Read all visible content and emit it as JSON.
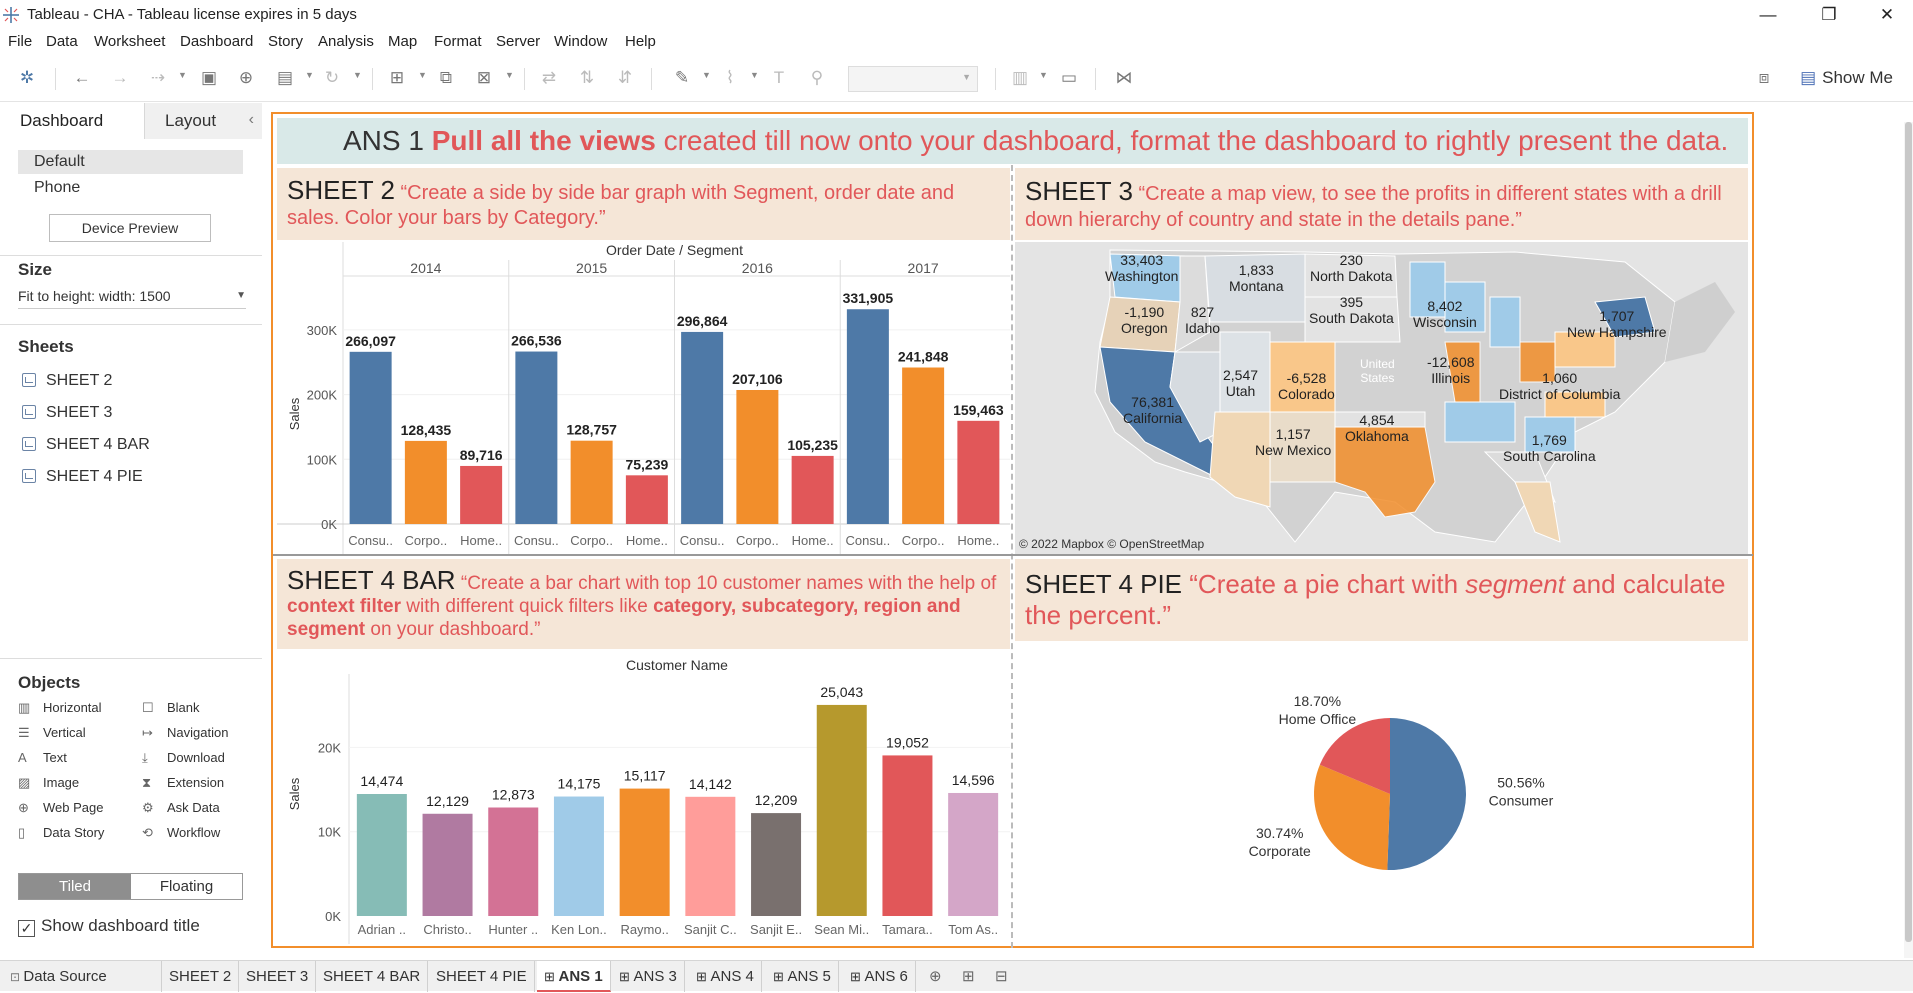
{
  "window": {
    "title": "Tableau - CHA - Tableau license expires in 5 days",
    "minimize": "—",
    "maximize": "❐",
    "close": "✕"
  },
  "menu": [
    "File",
    "Data",
    "Worksheet",
    "Dashboard",
    "Story",
    "Analysis",
    "Map",
    "Format",
    "Server",
    "Window",
    "Help"
  ],
  "toolbar": {
    "show_me": "Show Me"
  },
  "left_pane": {
    "tab_dashboard": "Dashboard",
    "tab_layout": "Layout",
    "devices": [
      "Default",
      "Phone"
    ],
    "device_preview": "Device Preview",
    "size_header": "Size",
    "size_value": "Fit to height: width: 1500",
    "sheets_header": "Sheets",
    "sheets": [
      "SHEET 2",
      "SHEET 3",
      "SHEET 4 BAR",
      "SHEET 4 PIE"
    ],
    "objects_header": "Objects",
    "objects": [
      {
        "label": "Horizontal",
        "icon": "horizontal-icon"
      },
      {
        "label": "Blank",
        "icon": "blank-icon"
      },
      {
        "label": "Vertical",
        "icon": "vertical-icon"
      },
      {
        "label": "Navigation",
        "icon": "navigation-icon"
      },
      {
        "label": "Text",
        "icon": "text-icon"
      },
      {
        "label": "Download",
        "icon": "download-icon"
      },
      {
        "label": "Image",
        "icon": "image-icon"
      },
      {
        "label": "Extension",
        "icon": "extension-icon"
      },
      {
        "label": "Web Page",
        "icon": "web-page-icon"
      },
      {
        "label": "Ask Data",
        "icon": "ask-data-icon"
      },
      {
        "label": "Data Story",
        "icon": "data-story-icon"
      },
      {
        "label": "Workflow",
        "icon": "workflow-icon"
      }
    ],
    "tiled": "Tiled",
    "floating": "Floating",
    "show_title": "Show dashboard title"
  },
  "dashboard": {
    "title_prefix": "ANS 1 ",
    "title_bold": "Pull all the views",
    "title_rest": " created till now onto your dashboard, format the dashboard to rightly present the data.",
    "sheet2": {
      "name": "SHEET 2",
      "question": "  “Create a side by side bar graph with Segment, order date and sales. Color your bars by Category.”"
    },
    "sheet3": {
      "name": "SHEET 3",
      "question": " “Create a map view, to see the profits in different states with a drill down hierarchy of country and state in the details pane.”"
    },
    "sheet4bar": {
      "name": "SHEET 4 BAR",
      "q1": "  “Create a bar chart with top 10 customer names with the help of ",
      "q2": "context filter",
      "q3": " with different quick filters like ",
      "q4": "category, subcategory, region and segment",
      "q5": "  on your dashboard.”"
    },
    "sheet4pie": {
      "name": "SHEET 4 PIE",
      "q1": "  “Create a pie chart with ",
      "q2": "segment",
      "q3": " and calculate the percent.”"
    },
    "map_attribution": "© 2022 Mapbox © OpenStreetMap",
    "map_labels": [
      {
        "value": "33,403",
        "state": "Washington"
      },
      {
        "value": "1,833",
        "state": "Montana"
      },
      {
        "value": "230",
        "state": "North Dakota"
      },
      {
        "value": "-1,190",
        "state": "Oregon"
      },
      {
        "value": "827",
        "state": "Idaho"
      },
      {
        "value": "395",
        "state": "South Dakota"
      },
      {
        "value": "8,402",
        "state": "Wisconsin"
      },
      {
        "value": "1,707",
        "state": "New Hampshire"
      },
      {
        "value": "2,547",
        "state": "Utah"
      },
      {
        "value": "-6,528",
        "state": "Colorado"
      },
      {
        "value": "-12,608",
        "state": "Illinois"
      },
      {
        "value": "1,060",
        "state": "District of Columbia"
      },
      {
        "value": "76,381",
        "state": "California"
      },
      {
        "value": "4,854",
        "state": "Oklahoma"
      },
      {
        "value": "1,157",
        "state": "New Mexico"
      },
      {
        "value": "1,769",
        "state": "South Carolina"
      }
    ],
    "map_faint": [
      "United",
      "States"
    ]
  },
  "chart_data": [
    {
      "type": "bar",
      "title": "Order Date / Segment",
      "ylabel": "Sales",
      "ylim": [
        0,
        340000
      ],
      "yticks": [
        "0K",
        "100K",
        "200K",
        "300K"
      ],
      "ytick_values": [
        0,
        100000,
        200000,
        300000
      ],
      "groups": [
        "2014",
        "2015",
        "2016",
        "2017"
      ],
      "categories": [
        "Consu..",
        "Corpo..",
        "Home.."
      ],
      "series": [
        {
          "name": "Consumer",
          "color": "#4e79a7",
          "values": [
            266097,
            266536,
            296864,
            331905
          ]
        },
        {
          "name": "Corporate",
          "color": "#f28e2b",
          "values": [
            128435,
            128757,
            207106,
            241848
          ]
        },
        {
          "name": "Home Office",
          "color": "#e15759",
          "values": [
            89716,
            75239,
            105235,
            159463
          ]
        }
      ],
      "labels": [
        [
          "266,097",
          "128,435",
          "89,716"
        ],
        [
          "266,536",
          "128,757",
          "75,239"
        ],
        [
          "296,864",
          "207,106",
          "105,235"
        ],
        [
          "331,905",
          "241,848",
          "159,463"
        ]
      ]
    },
    {
      "type": "bar",
      "title": "Customer Name",
      "ylabel": "Sales",
      "ylim": [
        0,
        28000
      ],
      "yticks": [
        "0K",
        "10K",
        "20K"
      ],
      "ytick_values": [
        0,
        10000,
        20000
      ],
      "categories": [
        "Adrian ..",
        "Christo..",
        "Hunter ..",
        "Ken Lon..",
        "Raymo..",
        "Sanjit C..",
        "Sanjit E..",
        "Sean Mi..",
        "Tamara..",
        "Tom As.."
      ],
      "values": [
        14474,
        12129,
        12873,
        14175,
        15117,
        14142,
        12209,
        25043,
        19052,
        14596
      ],
      "labels": [
        "14,474",
        "12,129",
        "12,873",
        "14,175",
        "15,117",
        "14,142",
        "12,209",
        "25,043",
        "19,052",
        "14,596"
      ],
      "colors": [
        "#86bcb6",
        "#b07aa1",
        "#d37295",
        "#a0cbe8",
        "#f28e2b",
        "#ff9d9a",
        "#79706e",
        "#b6992d",
        "#e15759",
        "#d4a6c8"
      ]
    },
    {
      "type": "pie",
      "slices": [
        {
          "name": "Consumer",
          "percent": 50.56,
          "label": "50.56%",
          "color": "#4e79a7"
        },
        {
          "name": "Corporate",
          "percent": 30.74,
          "label": "30.74%",
          "color": "#f28e2b"
        },
        {
          "name": "Home Office",
          "percent": 18.7,
          "label": "18.70%",
          "color": "#e15759"
        }
      ]
    }
  ],
  "bottom_tabs": {
    "data_source": "Data Source",
    "tabs": [
      "SHEET 2",
      "SHEET 3",
      "SHEET 4 BAR",
      "SHEET 4 PIE",
      "ANS 1",
      "ANS 3",
      "ANS 4",
      "ANS 5",
      "ANS 6"
    ]
  }
}
